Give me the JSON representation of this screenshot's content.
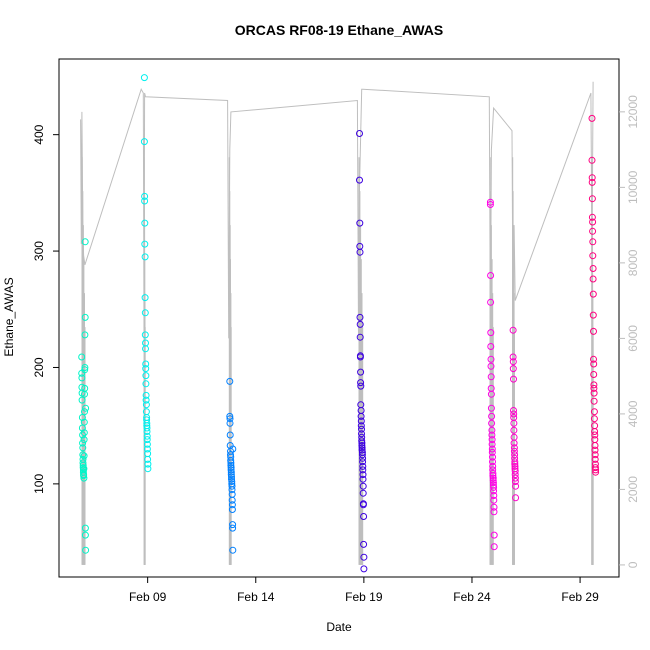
{
  "chart_data": {
    "type": "scatter",
    "title": "ORCAS RF08-19 Ethane_AWAS",
    "xlabel": "Date",
    "ylabel": "Ethane_AWAS",
    "x_unit": "day of February 2016",
    "xlim": [
      4.9,
      30.8
    ],
    "ylim": [
      20,
      465
    ],
    "y2lim": [
      -320,
      13400
    ],
    "x_ticks": [
      9,
      14,
      19,
      24,
      29
    ],
    "x_tick_labels": [
      "Feb 09",
      "Feb 14",
      "Feb 19",
      "Feb 24",
      "Feb 29"
    ],
    "y_ticks": [
      100,
      200,
      300,
      400
    ],
    "y_tick_labels": [
      "100",
      "200",
      "300",
      "400"
    ],
    "y2_ticks": [
      0,
      2000,
      4000,
      6000,
      8000,
      10000,
      12000
    ],
    "y2_tick_labels": [
      "0",
      "2000",
      "4000",
      "6000",
      "8000",
      "10000",
      "12000"
    ],
    "grid": false,
    "legend": "none",
    "colors": {
      "altitude_line": "#bebebe",
      "axis": "#000000",
      "right_axis": "#bdbdbd"
    },
    "altitude_trace": {
      "axis": "right",
      "points": [
        [
          5.9,
          11800
        ],
        [
          5.93,
          8500
        ],
        [
          5.96,
          12000
        ],
        [
          6.0,
          9000
        ],
        [
          6.04,
          8200
        ],
        [
          6.1,
          7950
        ],
        [
          8.7,
          12600
        ],
        [
          8.8,
          12500
        ],
        [
          8.83,
          6000
        ],
        [
          8.86,
          12500
        ],
        [
          8.9,
          12400
        ],
        [
          12.7,
          12300
        ],
        [
          12.75,
          6000
        ],
        [
          12.8,
          11000
        ],
        [
          12.85,
          12000
        ],
        [
          18.7,
          12300
        ],
        [
          18.75,
          6000
        ],
        [
          18.8,
          10000
        ],
        [
          18.9,
          12600
        ],
        [
          18.95,
          12600
        ],
        [
          24.8,
          12400
        ],
        [
          24.85,
          6000
        ],
        [
          24.9,
          11000
        ],
        [
          25.0,
          12100
        ],
        [
          25.85,
          11500
        ],
        [
          25.9,
          6000
        ],
        [
          25.95,
          9000
        ],
        [
          26.0,
          7000
        ],
        [
          29.5,
          12500
        ],
        [
          29.55,
          8000
        ],
        [
          29.6,
          12800
        ]
      ]
    },
    "series": [
      {
        "color": "#00f5c8",
        "x": [
          5.95,
          5.95,
          5.96,
          5.96,
          5.97,
          5.97,
          5.98,
          5.98,
          5.99,
          5.99,
          6.0,
          6.0,
          6.01,
          6.01,
          6.02,
          6.02,
          6.03,
          6.03,
          6.04,
          6.04,
          6.05,
          6.05,
          6.06,
          6.06,
          6.07,
          6.07,
          6.08,
          6.08,
          6.09,
          6.09,
          6.1,
          6.1,
          6.11,
          6.11,
          6.12,
          6.12,
          6.13,
          6.13
        ],
        "y": [
          209,
          195,
          191,
          183,
          178,
          172,
          157,
          148,
          142,
          135,
          131,
          125,
          121,
          118,
          116,
          114,
          112,
          110,
          108,
          107,
          105,
          113,
          124,
          138,
          144,
          153,
          162,
          177,
          182,
          198,
          200,
          228,
          243,
          308,
          62,
          56,
          43,
          165
        ]
      },
      {
        "color": "#00f0ee",
        "x": [
          8.85,
          8.85,
          8.86,
          8.86,
          8.87,
          8.87,
          8.88,
          8.88,
          8.89,
          8.89,
          8.9,
          8.9,
          8.91,
          8.91,
          8.92,
          8.92,
          8.93,
          8.93,
          8.94,
          8.94,
          8.95,
          8.95,
          8.96,
          8.96,
          8.97,
          8.97,
          8.98,
          8.98,
          8.99,
          8.99,
          9.0,
          9.0,
          9.01,
          9.01
        ],
        "y": [
          449,
          394,
          347,
          343,
          324,
          306,
          295,
          260,
          247,
          228,
          221,
          216,
          203,
          199,
          193,
          186,
          176,
          172,
          168,
          162,
          157,
          155,
          152,
          150,
          148,
          145,
          141,
          138,
          134,
          130,
          126,
          121,
          117,
          113
        ]
      },
      {
        "color": "#0080ff",
        "x": [
          12.8,
          12.8,
          12.81,
          12.81,
          12.82,
          12.82,
          12.83,
          12.83,
          12.84,
          12.84,
          12.85,
          12.85,
          12.86,
          12.86,
          12.87,
          12.87,
          12.88,
          12.88,
          12.89,
          12.89,
          12.9,
          12.9,
          12.91,
          12.91,
          12.92,
          12.92,
          12.93,
          12.93,
          12.94,
          12.94
        ],
        "y": [
          188,
          158,
          156,
          152,
          142,
          133,
          128,
          125,
          123,
          120,
          118,
          116,
          114,
          112,
          110,
          108,
          106,
          104,
          102,
          100,
          98,
          95,
          91,
          86,
          82,
          78,
          65,
          62,
          43,
          130
        ]
      },
      {
        "color": "#3c00e0",
        "x": [
          18.8,
          18.8,
          18.81,
          18.81,
          18.82,
          18.82,
          18.83,
          18.83,
          18.84,
          18.84,
          18.85,
          18.85,
          18.86,
          18.86,
          18.87,
          18.87,
          18.88,
          18.88,
          18.89,
          18.89,
          18.9,
          18.9,
          18.91,
          18.91,
          18.92,
          18.92,
          18.93,
          18.93,
          18.94,
          18.94,
          18.95,
          18.95,
          18.96,
          18.96,
          18.97,
          18.97,
          18.98,
          18.98,
          18.99,
          18.99,
          19.0,
          19.0
        ],
        "y": [
          401,
          361,
          324,
          304,
          299,
          243,
          237,
          226,
          210,
          209,
          196,
          187,
          184,
          168,
          163,
          158,
          154,
          150,
          147,
          143,
          140,
          137,
          135,
          133,
          131,
          129,
          127,
          125,
          122,
          119,
          115,
          112,
          108,
          104,
          98,
          92,
          83,
          82,
          72,
          48,
          37,
          27
        ]
      },
      {
        "color": "#ff00e6",
        "x": [
          24.85,
          24.85,
          24.86,
          24.86,
          24.87,
          24.87,
          24.88,
          24.88,
          24.89,
          24.89,
          24.9,
          24.9,
          24.91,
          24.91,
          24.92,
          24.92,
          24.93,
          24.93,
          24.94,
          24.94,
          24.95,
          24.95,
          24.96,
          24.96,
          24.97,
          24.97,
          24.98,
          24.98,
          24.99,
          24.99,
          25.0,
          25.0,
          25.01,
          25.01,
          25.02,
          25.02,
          25.03,
          25.03
        ],
        "y": [
          342,
          340,
          279,
          256,
          230,
          218,
          207,
          201,
          192,
          182,
          177,
          165,
          158,
          152,
          146,
          142,
          138,
          134,
          130,
          127,
          123,
          119,
          115,
          112,
          109,
          107,
          105,
          103,
          101,
          99,
          97,
          94,
          90,
          86,
          80,
          76,
          56,
          46
        ]
      },
      {
        "color": "#ff00cc",
        "x": [
          25.9,
          25.9,
          25.91,
          25.91,
          25.92,
          25.92,
          25.93,
          25.93,
          25.94,
          25.94,
          25.95,
          25.95,
          25.96,
          25.96,
          25.97,
          25.97,
          25.98,
          25.98,
          25.99,
          25.99,
          26.0,
          26.0,
          26.01,
          26.01,
          26.02,
          26.02
        ],
        "y": [
          232,
          209,
          205,
          199,
          190,
          163,
          160,
          157,
          152,
          146,
          140,
          135,
          131,
          128,
          125,
          122,
          119,
          117,
          115,
          113,
          111,
          108,
          105,
          102,
          98,
          88
        ]
      },
      {
        "color": "#ff0080",
        "x": [
          29.55,
          29.55,
          29.56,
          29.56,
          29.57,
          29.57,
          29.58,
          29.58,
          29.59,
          29.59,
          29.6,
          29.6,
          29.61,
          29.61,
          29.62,
          29.62,
          29.63,
          29.63,
          29.64,
          29.64,
          29.65,
          29.65,
          29.66,
          29.66,
          29.67,
          29.67,
          29.68,
          29.68,
          29.69,
          29.69,
          29.7,
          29.7,
          29.71,
          29.71,
          29.72,
          29.72
        ],
        "y": [
          414,
          378,
          363,
          359,
          345,
          329,
          325,
          317,
          308,
          296,
          285,
          276,
          263,
          245,
          231,
          207,
          203,
          194,
          185,
          182,
          178,
          171,
          162,
          156,
          150,
          145,
          142,
          138,
          133,
          129,
          125,
          121,
          117,
          114,
          112,
          110
        ]
      }
    ]
  }
}
